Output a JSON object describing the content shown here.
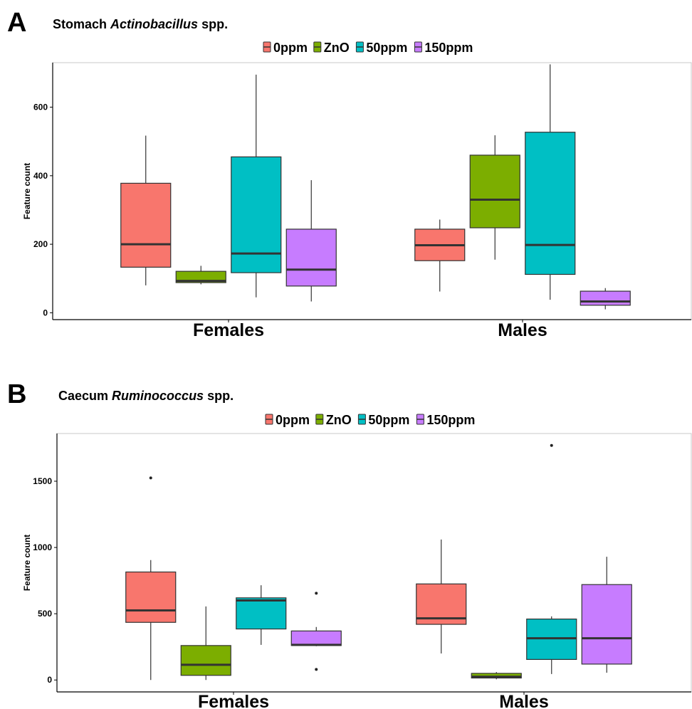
{
  "chart_data": [
    {
      "type": "box",
      "panel_label": "A",
      "title": "Stomach",
      "title_italic": "Actinobacillus",
      "title_suffix": "spp.",
      "xlabel": "",
      "ylabel": "Feature count",
      "ylim": [
        -20,
        730
      ],
      "yticks": [
        0,
        200,
        400,
        600
      ],
      "categories": [
        "Females",
        "Males"
      ],
      "legend_position": "top",
      "series": [
        {
          "name": "0ppm",
          "color": "#F8766D",
          "boxes": [
            {
              "min": 80,
              "q1": 133,
              "median": 200,
              "q3": 378,
              "max": 517,
              "outliers": []
            },
            {
              "min": 62,
              "q1": 152,
              "median": 197,
              "q3": 244,
              "max": 272,
              "outliers": []
            }
          ]
        },
        {
          "name": "ZnO",
          "color": "#7CAE00",
          "boxes": [
            {
              "min": 83,
              "q1": 88,
              "median": 93,
              "q3": 121,
              "max": 137,
              "outliers": []
            },
            {
              "min": 155,
              "q1": 248,
              "median": 330,
              "q3": 460,
              "max": 518,
              "outliers": []
            }
          ]
        },
        {
          "name": "50ppm",
          "color": "#00BFC4",
          "boxes": [
            {
              "min": 45,
              "q1": 117,
              "median": 173,
              "q3": 455,
              "max": 695,
              "outliers": []
            },
            {
              "min": 38,
              "q1": 112,
              "median": 198,
              "q3": 527,
              "max": 725,
              "outliers": []
            }
          ]
        },
        {
          "name": "150ppm",
          "color": "#C77CFF",
          "boxes": [
            {
              "min": 33,
              "q1": 78,
              "median": 126,
              "q3": 244,
              "max": 387,
              "outliers": []
            },
            {
              "min": 10,
              "q1": 22,
              "median": 33,
              "q3": 63,
              "max": 72,
              "outliers": []
            }
          ]
        }
      ]
    },
    {
      "type": "box",
      "panel_label": "B",
      "title": "Caecum",
      "title_italic": "Ruminococcus",
      "title_suffix": "spp.",
      "xlabel": "",
      "ylabel": "Feature count",
      "ylim": [
        -90,
        1860
      ],
      "yticks": [
        0,
        500,
        1000,
        1500
      ],
      "categories": [
        "Females",
        "Males"
      ],
      "legend_position": "top",
      "series": [
        {
          "name": "0ppm",
          "color": "#F8766D",
          "boxes": [
            {
              "min": 0,
              "q1": 435,
              "median": 525,
              "q3": 815,
              "max": 905,
              "outliers": [
                1525
              ]
            },
            {
              "min": 200,
              "q1": 420,
              "median": 465,
              "q3": 725,
              "max": 1060,
              "outliers": []
            }
          ]
        },
        {
          "name": "ZnO",
          "color": "#7CAE00",
          "boxes": [
            {
              "min": 0,
              "q1": 35,
              "median": 115,
              "q3": 260,
              "max": 555,
              "outliers": []
            },
            {
              "min": 5,
              "q1": 15,
              "median": 25,
              "q3": 50,
              "max": 60,
              "outliers": []
            }
          ]
        },
        {
          "name": "50ppm",
          "color": "#00BFC4",
          "boxes": [
            {
              "min": 265,
              "q1": 385,
              "median": 600,
              "q3": 620,
              "max": 715,
              "outliers": []
            },
            {
              "min": 45,
              "q1": 155,
              "median": 315,
              "q3": 460,
              "max": 480,
              "outliers": [
                1770
              ]
            }
          ]
        },
        {
          "name": "150ppm",
          "color": "#C77CFF",
          "boxes": [
            {
              "min": 255,
              "q1": 260,
              "median": 265,
              "q3": 370,
              "max": 400,
              "outliers": [
                655,
                80
              ]
            },
            {
              "min": 55,
              "q1": 120,
              "median": 315,
              "q3": 720,
              "max": 930,
              "outliers": []
            }
          ]
        }
      ]
    }
  ]
}
